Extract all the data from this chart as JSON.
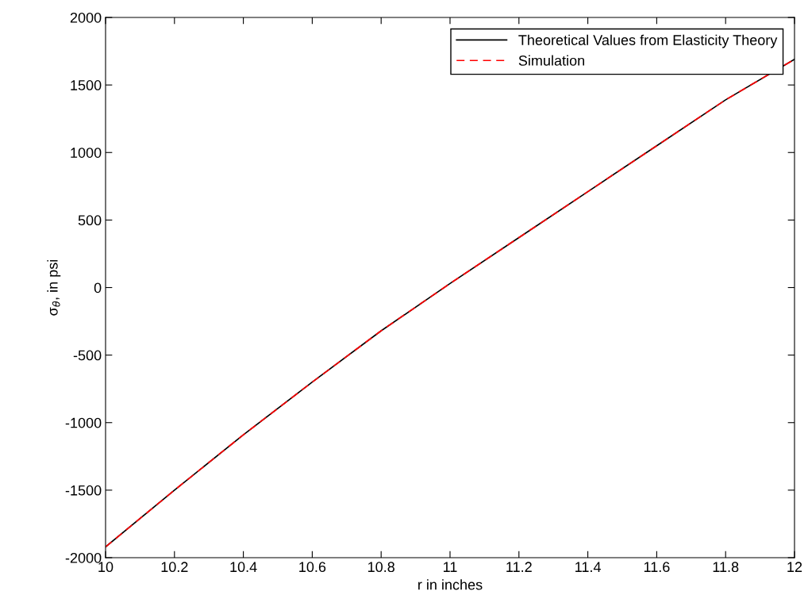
{
  "chart_data": {
    "type": "line",
    "xlabel": "r in inches",
    "ylabel": "σ$_{θ}$, in psi",
    "xlim": [
      10,
      12
    ],
    "xticks": [
      10,
      10.2,
      10.4,
      10.6,
      10.8,
      11,
      11.2,
      11.4,
      11.6,
      11.8,
      12
    ],
    "ylim": [
      -2000,
      2000
    ],
    "yticks": [
      -2000,
      -1500,
      -1000,
      -500,
      0,
      500,
      1000,
      1500,
      2000
    ],
    "grid": false,
    "legend": "top right",
    "series": [
      {
        "name": "Theoretical Values from Elasticity Theory",
        "color": "#000000",
        "line_style": "solid",
        "x": [
          10,
          10.2,
          10.4,
          10.6,
          10.8,
          11,
          11.2,
          11.4,
          11.6,
          11.8,
          12
        ],
        "values": [
          -1920,
          -1500,
          -1090,
          -700,
          -320,
          30,
          370,
          710,
          1050,
          1390,
          1690
        ]
      },
      {
        "name": "Simulation",
        "color": "#ff0000",
        "line_style": "dashed",
        "x": [
          10,
          10.2,
          10.4,
          10.6,
          10.8,
          11,
          11.2,
          11.4,
          11.6,
          11.8,
          12
        ],
        "values": [
          -1920,
          -1500,
          -1090,
          -700,
          -320,
          30,
          370,
          710,
          1050,
          1390,
          1690
        ]
      }
    ]
  }
}
